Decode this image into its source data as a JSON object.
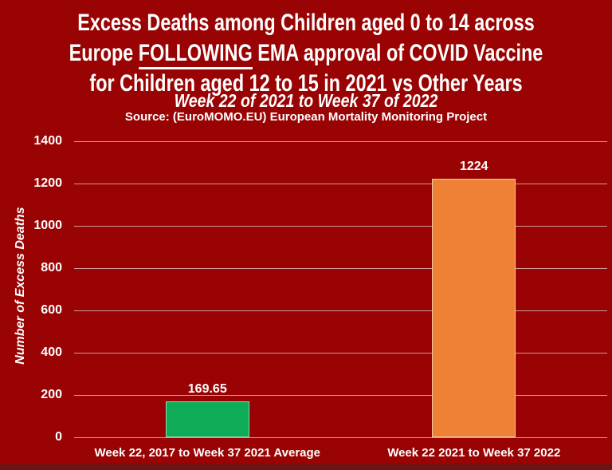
{
  "title": {
    "line1": "Excess Deaths among Children aged 0 to 14 across",
    "line2_before": "Europe ",
    "line2_underlined": "FOLLOWING",
    "line2_after": " EMA approval of COVID Vaccine",
    "line3": "for Children aged 12 to 15 in 2021 vs Other Years",
    "subtitle": "Week 22 of 2021 to Week 37 of 2022",
    "source": "Source: (EuroMOMO.EU) European Mortality Monitoring Project"
  },
  "chart_data": {
    "type": "bar",
    "title": "Excess Deaths among Children aged 0 to 14 across Europe FOLLOWING EMA approval of COVID Vaccine for Children aged 12 to 15 in 2021 vs Other Years",
    "subtitle": "Week 22 of 2021 to Week 37 of 2022",
    "source": "Source: (EuroMOMO.EU) European Mortality Monitoring Project",
    "categories": [
      "Week 22, 2017 to Week 37 2021 Average",
      "Week 22 2021 to Week 37 2022"
    ],
    "values": [
      169.65,
      1224
    ],
    "value_labels": [
      "169.65",
      "1224"
    ],
    "bar_colors": [
      "#0FAC58",
      "#EE8135"
    ],
    "xlabel": "",
    "ylabel": "Number of Excess Deaths",
    "ylim": [
      0,
      1400
    ],
    "yticks": [
      0,
      200,
      400,
      600,
      800,
      1000,
      1200,
      1400
    ],
    "grid": true,
    "legend": false
  },
  "colors": {
    "background": "#9A0303",
    "bottom_strip": "#6E1212",
    "text": "#FFFFFF",
    "gridline": "rgba(224,198,198,0.78)",
    "bar_green": "#0FAC58",
    "bar_orange": "#EE8135"
  }
}
